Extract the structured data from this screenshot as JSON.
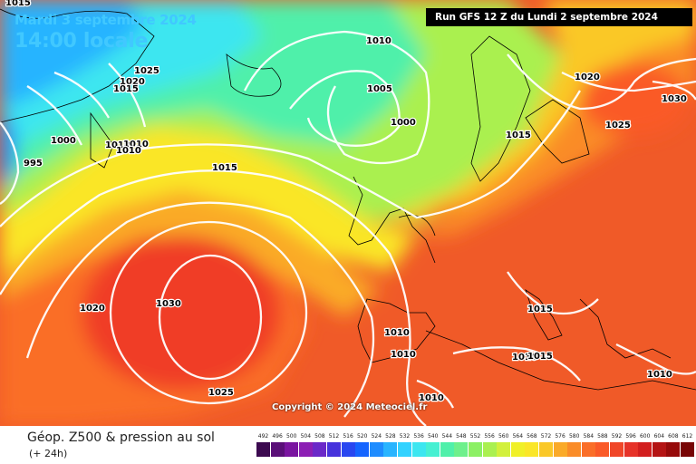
{
  "map": {
    "date_label": "Mardi 3 septembre 2024",
    "time_label": "14:00 locale",
    "run_label": "Run GFS 12 Z du Lundi 2 septembre 2024",
    "copyright": "Copyright © 2024 Meteociel.fr",
    "isobar_labels": [
      {
        "value": "1015"
      },
      {
        "value": "1025"
      },
      {
        "value": "1020"
      },
      {
        "value": "1015"
      },
      {
        "value": "1000"
      },
      {
        "value": "1010"
      },
      {
        "value": "1010"
      },
      {
        "value": "1010"
      },
      {
        "value": "995"
      },
      {
        "value": "1010"
      },
      {
        "value": "1005"
      },
      {
        "value": "1000"
      },
      {
        "value": "1015"
      },
      {
        "value": "1015"
      },
      {
        "value": "1020"
      },
      {
        "value": "1025"
      },
      {
        "value": "1030"
      },
      {
        "value": "1030"
      },
      {
        "value": "1020"
      },
      {
        "value": "1025"
      },
      {
        "value": "1015"
      },
      {
        "value": "1010"
      },
      {
        "value": "1010"
      },
      {
        "value": "1010"
      },
      {
        "value": "1015"
      },
      {
        "value": "1010"
      },
      {
        "value": "1010"
      }
    ]
  },
  "footer": {
    "product_title": "Géop. Z500 & pression au sol",
    "forecast_offset": "(+ 24h)"
  },
  "legend": {
    "ticks": [
      "492",
      "496",
      "500",
      "504",
      "508",
      "512",
      "516",
      "520",
      "524",
      "528",
      "532",
      "536",
      "540",
      "544",
      "548",
      "552",
      "556",
      "560",
      "564",
      "568",
      "572",
      "576",
      "580",
      "584",
      "588",
      "592",
      "596",
      "600",
      "604",
      "608",
      "612"
    ],
    "colors": [
      "#3c0a50",
      "#5a0f78",
      "#7a14a0",
      "#8c1eb4",
      "#6a28c8",
      "#4632dc",
      "#2846f0",
      "#1464ff",
      "#1e8cff",
      "#28b4ff",
      "#32d2ff",
      "#3ce6f0",
      "#46f0d2",
      "#50f0aa",
      "#6ef08c",
      "#8cf064",
      "#aaf050",
      "#d2f03c",
      "#f0f028",
      "#fae628",
      "#fac828",
      "#faaa28",
      "#fa8c28",
      "#fa6e28",
      "#fa5a28",
      "#f04628",
      "#e63228",
      "#d21e1e",
      "#b41414",
      "#960a0a",
      "#780505"
    ]
  }
}
